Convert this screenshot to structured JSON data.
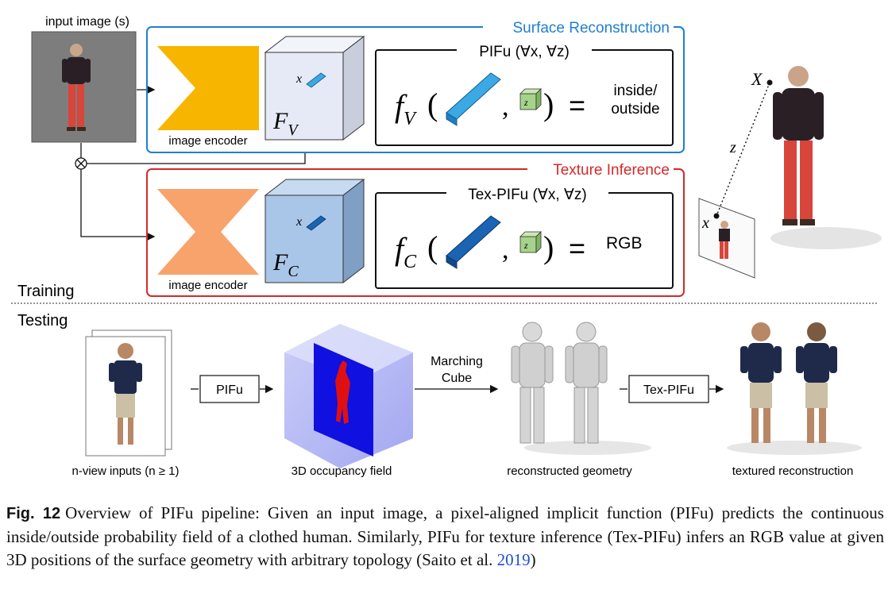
{
  "training": {
    "input_label": "input image (s)",
    "section_label": "Training",
    "surface": {
      "title": "Surface Reconstruction",
      "encoder_label": "image encoder",
      "feature_F": "F",
      "feature_sub": "V",
      "x_label": "x",
      "pifu_title": "PIFu (∀x, ∀z)",
      "func_f": "f",
      "func_sub": "V",
      "z_label": "z",
      "comma": ",",
      "eq": "=",
      "output_line1": "inside/",
      "output_line2": "outside"
    },
    "texture": {
      "title": "Texture Inference",
      "encoder_label": "image encoder",
      "feature_F": "F",
      "feature_sub": "C",
      "x_label": "x",
      "pifu_title": "Tex-PIFu (∀x, ∀z)",
      "func_f": "f",
      "func_sub": "C",
      "z_label": "z",
      "comma": ",",
      "eq": "=",
      "output": "RGB"
    },
    "right_labels": {
      "X": "X",
      "z": "z",
      "x": "x"
    }
  },
  "testing": {
    "section_label": "Testing",
    "inputs_label": "n-view inputs (n ≥ 1)",
    "pifu_box": "PIFu",
    "occupancy_label": "3D occupancy field",
    "marching_line1": "Marching",
    "marching_line2": "Cube",
    "geometry_label": "reconstructed geometry",
    "texpifu_box": "Tex-PIFu",
    "textured_label": "textured reconstruction"
  },
  "caption": {
    "fig_label": "Fig. 12",
    "text": "Overview of PIFu pipeline: Given an input image, a pixel-aligned implicit function (PIFu) predicts the continuous inside/outside probability field of a clothed human. Similarly, PIFu for texture inference (Tex-PIFu) infers an RGB value at given 3D positions of the surface geometry with arbitrary topology (Saito et al. ",
    "cite_year": "2019",
    "close": ")"
  },
  "colors": {
    "surface_border": "#1f7fd0",
    "texture_border": "#d42a2a",
    "encoder_surface": "#f7b500",
    "encoder_texture": "#f7a36b",
    "cube_surface_front": "#e6eaf6",
    "cube_texture_front": "#a9c6e8",
    "bar_surface": "#3aa9e4",
    "bar_texture": "#1b63b3",
    "occupancy_blue": "#1010e0",
    "occupancy_red": "#e01010"
  }
}
